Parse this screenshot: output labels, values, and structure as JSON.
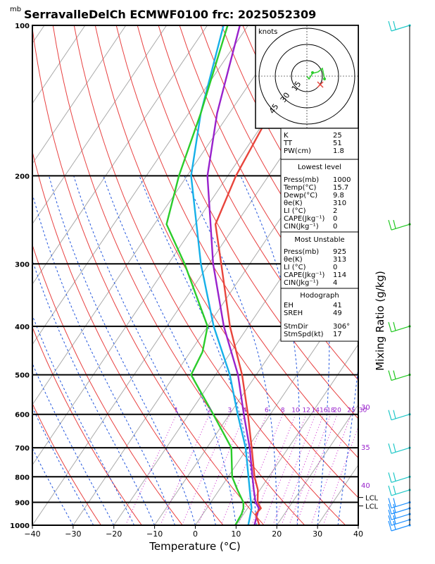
{
  "chart_data": {
    "type": "skew-t",
    "title": "SerravalleDelCh ECMWF0100 frc: 2025052309",
    "y_unit_label": "mb",
    "xlabel": "Temperature (°C)",
    "right_label": "Mixing Ratio (g/kg)",
    "x_ticks": [
      -40,
      -30,
      -20,
      -10,
      0,
      10,
      20,
      30,
      40
    ],
    "p_ticks": [
      100,
      200,
      300,
      400,
      500,
      600,
      700,
      800,
      900,
      1000
    ],
    "xlim": [
      -40,
      40
    ],
    "plim": [
      100,
      1000
    ],
    "mixing_ratio_labels": [
      "1",
      "2",
      "3",
      "4",
      "6",
      "8",
      "10",
      "12",
      "14",
      "16",
      "18",
      "20",
      "25",
      "30"
    ],
    "mixing_ratio_values": [
      1,
      2,
      3,
      4,
      6,
      8,
      10,
      12,
      14,
      16,
      18,
      20,
      25,
      30
    ],
    "isotherm_labels": [
      "30",
      "35",
      "40"
    ],
    "lcl_labels": [
      "LCL",
      "LCL"
    ],
    "lcl_pressures": [
      880,
      915
    ],
    "temperature": {
      "color": "#e8453c",
      "points": [
        [
          1000,
          15.7
        ],
        [
          950,
          13.0
        ],
        [
          925,
          13.3
        ],
        [
          900,
          11.5
        ],
        [
          850,
          9.5
        ],
        [
          800,
          6.5
        ],
        [
          700,
          1.0
        ],
        [
          600,
          -5.5
        ],
        [
          500,
          -13.5
        ],
        [
          400,
          -24.5
        ],
        [
          300,
          -37.0
        ],
        [
          250,
          -45.0
        ],
        [
          200,
          -48.0
        ],
        [
          150,
          -50.0
        ],
        [
          100,
          -55.0
        ]
      ]
    },
    "dewpoint": {
      "color": "#2bcc2b",
      "points": [
        [
          1000,
          9.8
        ],
        [
          950,
          9.5
        ],
        [
          925,
          9.0
        ],
        [
          900,
          8.0
        ],
        [
          850,
          4.5
        ],
        [
          800,
          1.0
        ],
        [
          700,
          -4.0
        ],
        [
          600,
          -14.0
        ],
        [
          500,
          -26.0
        ],
        [
          450,
          -27.0
        ],
        [
          400,
          -30.0
        ],
        [
          300,
          -46.0
        ],
        [
          250,
          -57.0
        ],
        [
          200,
          -62.0
        ],
        [
          150,
          -67.0
        ],
        [
          100,
          -75.0
        ]
      ]
    },
    "parcel_purple": {
      "color": "#9922cc",
      "points": [
        [
          1000,
          14.5
        ],
        [
          925,
          12.8
        ],
        [
          900,
          11.0
        ],
        [
          850,
          8.5
        ],
        [
          800,
          6.0
        ],
        [
          700,
          0.5
        ],
        [
          600,
          -6.5
        ],
        [
          500,
          -14.5
        ],
        [
          400,
          -26.0
        ],
        [
          300,
          -39.0
        ],
        [
          200,
          -55.0
        ],
        [
          150,
          -63.0
        ],
        [
          100,
          -72.0
        ]
      ]
    },
    "parcel_cyan": {
      "color": "#16b0e8",
      "points": [
        [
          1000,
          13.0
        ],
        [
          925,
          11.0
        ],
        [
          850,
          7.5
        ],
        [
          800,
          5.0
        ],
        [
          700,
          -0.5
        ],
        [
          600,
          -8.0
        ],
        [
          500,
          -16.5
        ],
        [
          400,
          -28.5
        ],
        [
          300,
          -42.0
        ],
        [
          200,
          -59.0
        ],
        [
          150,
          -67.0
        ],
        [
          100,
          -76.0
        ]
      ]
    },
    "hodograph": {
      "units": "knots",
      "ring_labels": [
        "15",
        "30",
        "45"
      ]
    },
    "indices": {
      "general": [
        [
          "K",
          "25"
        ],
        [
          "TT",
          "51"
        ],
        [
          "PW(cm)",
          "1.8"
        ]
      ],
      "lowest_title": "Lowest level",
      "lowest": [
        [
          "Press(mb)",
          "1000"
        ],
        [
          "Temp(°C)",
          "15.7"
        ],
        [
          "Dewp(°C)",
          "9.8"
        ],
        [
          "θe(K)",
          "310"
        ],
        [
          "LI (°C)",
          "2"
        ],
        [
          "CAPE(Jkg⁻¹)",
          "0"
        ],
        [
          "CIN(Jkg⁻¹)",
          "0"
        ]
      ],
      "unstable_title": "Most Unstable",
      "unstable": [
        [
          "Press(mb)",
          "925"
        ],
        [
          "θe(K)",
          "313"
        ],
        [
          "LI (°C)",
          "0"
        ],
        [
          "CAPE(Jkg⁻¹)",
          "114"
        ],
        [
          "CIN(Jkg⁻¹)",
          "4"
        ]
      ],
      "hodo_title": "Hodograph",
      "hodo": [
        [
          "EH",
          "41"
        ],
        [
          "SREH",
          "49"
        ],
        [
          "StmDir",
          "306°"
        ],
        [
          "StmSpd(kt)",
          "17"
        ]
      ]
    },
    "wind_barbs": [
      {
        "p": 100,
        "color": "#20c8c8"
      },
      {
        "p": 250,
        "color": "#20c820"
      },
      {
        "p": 400,
        "color": "#20c820"
      },
      {
        "p": 500,
        "color": "#20c820"
      },
      {
        "p": 600,
        "color": "#20c8c8"
      },
      {
        "p": 700,
        "color": "#20c8c8"
      },
      {
        "p": 800,
        "color": "#20c8c8"
      },
      {
        "p": 850,
        "color": "#20c8c8"
      },
      {
        "p": 900,
        "color": "#1e90ff"
      },
      {
        "p": 925,
        "color": "#1e90ff"
      },
      {
        "p": 950,
        "color": "#1e90ff"
      },
      {
        "p": 975,
        "color": "#1e90ff"
      },
      {
        "p": 1000,
        "color": "#1e90ff"
      }
    ]
  }
}
